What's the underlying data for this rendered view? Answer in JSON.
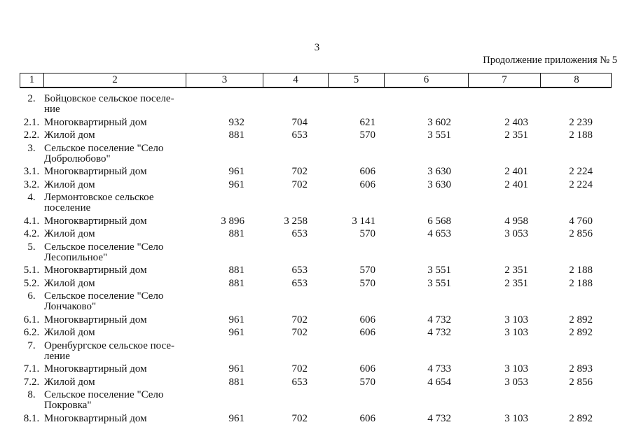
{
  "page": {
    "number": "3",
    "continuation_label": "Продолжение приложения № 5"
  },
  "table": {
    "header_cells": [
      "1",
      "2",
      "3",
      "4",
      "5",
      "6",
      "7",
      "8"
    ],
    "rows": [
      {
        "type": "group",
        "num": "2.",
        "name": "Бойцовское сельское поселе-\nние"
      },
      {
        "type": "data",
        "num": "2.1.",
        "name": "Многоквартирный дом",
        "values": [
          "932",
          "704",
          "621",
          "3 602",
          "2 403",
          "2 239"
        ]
      },
      {
        "type": "data",
        "num": "2.2.",
        "name": "Жилой дом",
        "values": [
          "881",
          "653",
          "570",
          "3 551",
          "2 351",
          "2 188"
        ]
      },
      {
        "type": "group",
        "num": "3.",
        "name": "Сельское поселение \"Село\nДобролюбово\""
      },
      {
        "type": "data",
        "num": "3.1.",
        "name": "Многоквартирный дом",
        "values": [
          "961",
          "702",
          "606",
          "3 630",
          "2 401",
          "2 224"
        ]
      },
      {
        "type": "data",
        "num": "3.2.",
        "name": "Жилой дом",
        "values": [
          "961",
          "702",
          "606",
          "3 630",
          "2 401",
          "2 224"
        ]
      },
      {
        "type": "group",
        "num": "4.",
        "name": "Лермонтовское сельское\nпоселение"
      },
      {
        "type": "data",
        "num": "4.1.",
        "name": "Многоквартирный дом",
        "values": [
          "3 896",
          "3 258",
          "3 141",
          "6 568",
          "4 958",
          "4 760"
        ]
      },
      {
        "type": "data",
        "num": "4.2.",
        "name": "Жилой дом",
        "values": [
          "881",
          "653",
          "570",
          "4 653",
          "3 053",
          "2 856"
        ]
      },
      {
        "type": "group",
        "num": "5.",
        "name": "Сельское поселение \"Село\nЛесопильное\""
      },
      {
        "type": "data",
        "num": "5.1.",
        "name": "Многоквартирный дом",
        "values": [
          "881",
          "653",
          "570",
          "3 551",
          "2 351",
          "2 188"
        ]
      },
      {
        "type": "data",
        "num": "5.2.",
        "name": "Жилой дом",
        "values": [
          "881",
          "653",
          "570",
          "3 551",
          "2 351",
          "2 188"
        ]
      },
      {
        "type": "group",
        "num": "6.",
        "name": "Сельское поселение \"Село\nЛончаково\""
      },
      {
        "type": "data",
        "num": "6.1.",
        "name": "Многоквартирный дом",
        "values": [
          "961",
          "702",
          "606",
          "4 732",
          "3 103",
          "2 892"
        ]
      },
      {
        "type": "data",
        "num": "6.2.",
        "name": "Жилой дом",
        "values": [
          "961",
          "702",
          "606",
          "4 732",
          "3 103",
          "2 892"
        ]
      },
      {
        "type": "group",
        "num": "7.",
        "name": "Оренбургское сельское посе-\nление"
      },
      {
        "type": "data",
        "num": "7.1.",
        "name": "Многоквартирный дом",
        "values": [
          "961",
          "702",
          "606",
          "4 733",
          "3 103",
          "2 893"
        ]
      },
      {
        "type": "data",
        "num": "7.2.",
        "name": "Жилой дом",
        "values": [
          "881",
          "653",
          "570",
          "4 654",
          "3 053",
          "2 856"
        ]
      },
      {
        "type": "group",
        "num": "8.",
        "name": "Сельское поселение \"Село\nПокровка\""
      },
      {
        "type": "data",
        "num": "8.1.",
        "name": "Многоквартирный дом",
        "values": [
          "961",
          "702",
          "606",
          "4 732",
          "3 103",
          "2 892"
        ]
      }
    ]
  }
}
